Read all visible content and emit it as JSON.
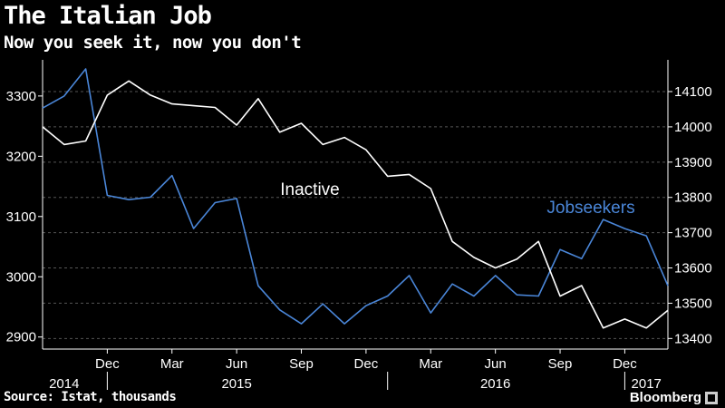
{
  "header": {
    "title": "The Italian Job",
    "subtitle": "Now you seek it, now you don't"
  },
  "footer": {
    "source": "Source: Istat, thousands",
    "brand": "Bloomberg"
  },
  "colors": {
    "background": "#000000",
    "jobseekers": "#4a86d8",
    "inactive": "#ffffff",
    "grid": "#555555"
  },
  "chart_data": {
    "type": "line",
    "title": "The Italian Job",
    "subtitle": "Now you seek it, now you don't",
    "x": [
      "2014-09",
      "2014-10",
      "2014-11",
      "2014-12",
      "2015-01",
      "2015-02",
      "2015-03",
      "2015-04",
      "2015-05",
      "2015-06",
      "2015-07",
      "2015-08",
      "2015-09",
      "2015-10",
      "2015-11",
      "2015-12",
      "2016-01",
      "2016-02",
      "2016-03",
      "2016-04",
      "2016-05",
      "2016-06",
      "2016-07",
      "2016-08",
      "2016-09",
      "2016-10",
      "2016-11",
      "2016-12",
      "2017-01",
      "2017-02"
    ],
    "x_tick_labels": [
      "Dec",
      "Mar",
      "Jun",
      "Sep",
      "Dec",
      "Mar",
      "Jun",
      "Sep",
      "Dec"
    ],
    "x_ticks": [
      "2014-12",
      "2015-03",
      "2015-06",
      "2015-09",
      "2015-12",
      "2016-03",
      "2016-06",
      "2016-09",
      "2016-12"
    ],
    "year_labels": [
      {
        "label": "2014",
        "at": "2014-10"
      },
      {
        "label": "2015",
        "at": "2015-06"
      },
      {
        "label": "2016",
        "at": "2016-06"
      },
      {
        "label": "2017",
        "at": "2017-01"
      }
    ],
    "year_dividers": [
      "2014-12",
      "2016-01",
      "2016-12"
    ],
    "series": [
      {
        "name": "Jobseekers",
        "axis": "left",
        "color": "#4a86d8",
        "values": [
          3280,
          3300,
          3345,
          3135,
          3128,
          3132,
          3168,
          3080,
          3123,
          3130,
          2985,
          2945,
          2922,
          2955,
          2922,
          2952,
          2968,
          3002,
          2940,
          2988,
          2968,
          3002,
          2970,
          2968,
          3045,
          3030,
          3095,
          3080,
          3068,
          2985
        ]
      },
      {
        "name": "Inactive",
        "axis": "right",
        "color": "#ffffff",
        "values": [
          14000,
          13950,
          13960,
          14090,
          14130,
          14090,
          14065,
          14060,
          14055,
          14005,
          14080,
          13985,
          14010,
          13950,
          13970,
          13935,
          13860,
          13865,
          13825,
          13675,
          13630,
          13600,
          13625,
          13675,
          13520,
          13550,
          13430,
          13455,
          13430,
          13480
        ]
      }
    ],
    "y_left": {
      "ticks": [
        2900,
        3000,
        3100,
        3200,
        3300
      ],
      "ylim": [
        2880,
        3360
      ]
    },
    "y_right": {
      "ticks": [
        13400,
        13500,
        13600,
        13700,
        13800,
        13900,
        14000,
        14100
      ],
      "ylim": [
        13370,
        14190
      ]
    },
    "annotations": [
      {
        "text": "Inactive",
        "series": "Inactive"
      },
      {
        "text": "Jobseekers",
        "series": "Jobseekers"
      }
    ],
    "grid": "horizontal dashed"
  }
}
